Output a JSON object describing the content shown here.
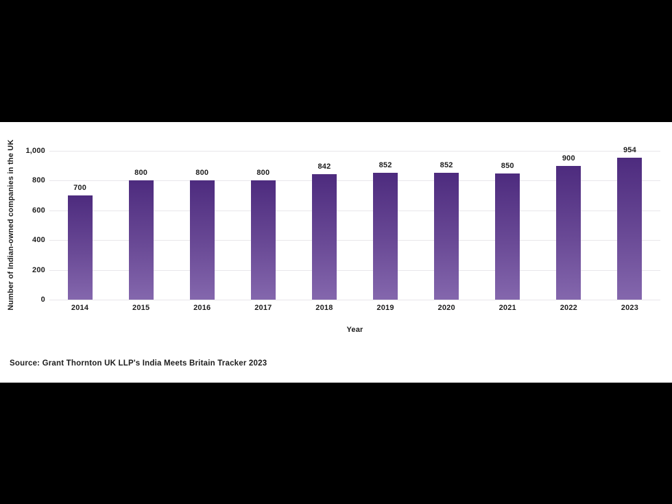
{
  "page": {
    "background_color": "#000000",
    "panel_background_color": "#ffffff"
  },
  "chart_data": {
    "type": "bar",
    "categories": [
      "2014",
      "2015",
      "2016",
      "2017",
      "2018",
      "2019",
      "2020",
      "2021",
      "2022",
      "2023"
    ],
    "values": [
      700,
      800,
      800,
      800,
      842,
      852,
      852,
      850,
      900,
      954
    ],
    "value_labels": [
      "700",
      "800",
      "800",
      "800",
      "842",
      "852",
      "852",
      "850",
      "900",
      "954"
    ],
    "title": "",
    "xlabel": "Year",
    "ylabel": "Number of Indian-owned companies in the UK",
    "ylim": [
      0,
      1000
    ],
    "ytick_interval": 200,
    "ytick_labels": [
      "0",
      "200",
      "400",
      "600",
      "800",
      "1,000"
    ],
    "grid": true,
    "legend": false,
    "bar_color_top": "#4d2b7e",
    "bar_color_bottom": "#8467ad",
    "gridline_color": "#e8e6ea",
    "text_color": "#1c1c1c"
  },
  "source": {
    "text": "Source: Grant Thornton UK LLP's India Meets Britain Tracker 2023"
  }
}
